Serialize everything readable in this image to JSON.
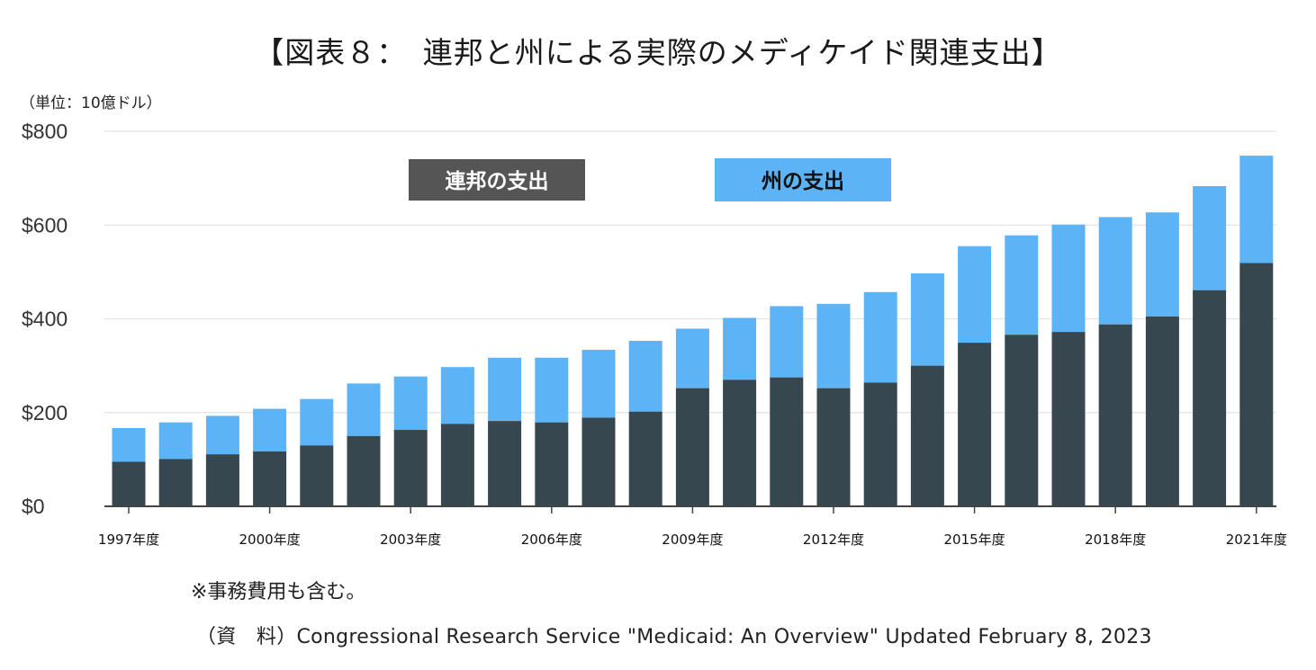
{
  "title": "【図表８：　連邦と州による実際のメディケイド関連支出】",
  "unit_label": "（単位：10億ドル）",
  "note": "※事務費用も含む。",
  "source": "（資　料）Congressional Research Service \"Medicaid: An Overview\" Updated February 8, 2023",
  "colors": {
    "federal": "#37474f",
    "state": "#5cb3f5",
    "legend_federal_bg": "#555555",
    "legend_state_bg": "#5cb3f5",
    "grid": "#e3e3e3",
    "axis": "#444444"
  },
  "chart_data": {
    "type": "bar",
    "stacked": true,
    "categories": [
      "1997",
      "1998",
      "1999",
      "2000",
      "2001",
      "2002",
      "2003",
      "2004",
      "2005",
      "2006",
      "2007",
      "2008",
      "2009",
      "2010",
      "2011",
      "2012",
      "2013",
      "2014",
      "2015",
      "2016",
      "2017",
      "2018",
      "2019",
      "2020",
      "2021"
    ],
    "x_tick_labels": [
      {
        "index": 0,
        "label": "1997年度"
      },
      {
        "index": 3,
        "label": "2000年度"
      },
      {
        "index": 6,
        "label": "2003年度"
      },
      {
        "index": 9,
        "label": "2006年度"
      },
      {
        "index": 12,
        "label": "2009年度"
      },
      {
        "index": 15,
        "label": "2012年度"
      },
      {
        "index": 18,
        "label": "2015年度"
      },
      {
        "index": 21,
        "label": "2018年度"
      },
      {
        "index": 24,
        "label": "2021年度"
      }
    ],
    "series": [
      {
        "name": "連邦の支出",
        "values": [
          95,
          101,
          111,
          117,
          130,
          150,
          163,
          176,
          182,
          179,
          189,
          202,
          252,
          270,
          275,
          252,
          264,
          300,
          349,
          366,
          372,
          388,
          405,
          461,
          519
        ]
      },
      {
        "name": "州の支出",
        "values": [
          72,
          78,
          82,
          91,
          99,
          112,
          114,
          121,
          135,
          138,
          145,
          151,
          127,
          132,
          152,
          180,
          193,
          197,
          206,
          212,
          229,
          229,
          222,
          222,
          229
        ]
      }
    ],
    "ylim": [
      0,
      800
    ],
    "y_ticks": [
      0,
      200,
      400,
      600,
      800
    ],
    "y_tick_labels": [
      "$0",
      "$200",
      "$400",
      "$600",
      "$800"
    ],
    "grid": true,
    "legend_position": "top"
  }
}
